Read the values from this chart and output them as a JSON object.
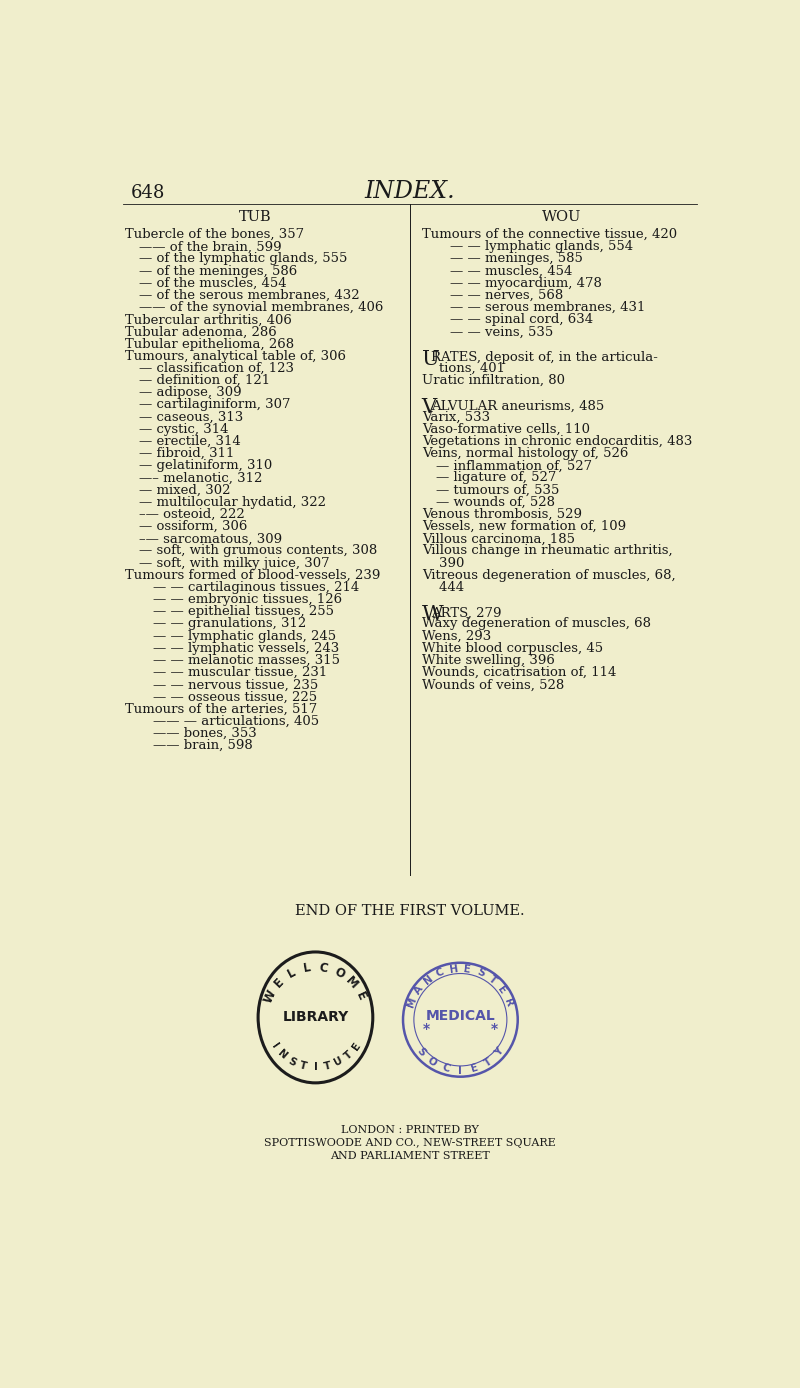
{
  "bg_color": "#f0eecc",
  "page_number": "648",
  "page_title": "INDEX.",
  "col1_header": "TUB",
  "col2_header": "WOU",
  "col1_lines": [
    [
      "Tubercle of the bones, 357",
      0
    ],
    [
      "—— of the brain, 599",
      1
    ],
    [
      "— of the lymphatic glands, 555",
      1
    ],
    [
      "— of the meninges, 586",
      1
    ],
    [
      "— of the muscles, 454",
      1
    ],
    [
      "— of the serous membranes, 432",
      1
    ],
    [
      "—— of the synovial membranes, 406",
      1
    ],
    [
      "Tubercular arthritis, 406",
      0
    ],
    [
      "Tubular adenoma, 286",
      0
    ],
    [
      "Tubular epithelioma, 268",
      0
    ],
    [
      "Tumours, analytical table of, 306",
      0
    ],
    [
      "— classification of, 123",
      1
    ],
    [
      "— definition of, 121",
      1
    ],
    [
      "— adipose, 309",
      1
    ],
    [
      "— cartilaginiform, 307",
      1
    ],
    [
      "— caseous, 313",
      1
    ],
    [
      "— cystic, 314",
      1
    ],
    [
      "— erectile, 314",
      1
    ],
    [
      "— fibroid, 311",
      1
    ],
    [
      "— gelatiniform, 310",
      1
    ],
    [
      "—– melanotic, 312",
      1
    ],
    [
      "— mixed, 302",
      1
    ],
    [
      "— multilocular hydatid, 322",
      1
    ],
    [
      "–— osteoid, 222",
      1
    ],
    [
      "— ossiform, 306",
      1
    ],
    [
      "–— sarcomatous, 309",
      1
    ],
    [
      "— soft, with grumous contents, 308",
      1
    ],
    [
      "— soft, with milky juice, 307",
      1
    ],
    [
      "Tumours formed of blood-vessels, 239",
      0
    ],
    [
      "— — cartilaginous tissues, 214",
      2
    ],
    [
      "— — embryonic tissues, 126",
      2
    ],
    [
      "— — epithelial tissues, 255",
      2
    ],
    [
      "— — granulations, 312",
      2
    ],
    [
      "— — lymphatic glands, 245",
      2
    ],
    [
      "— — lymphatic vessels, 243",
      2
    ],
    [
      "— — melanotic masses, 315",
      2
    ],
    [
      "— — muscular tissue, 231",
      2
    ],
    [
      "— — nervous tissue, 235",
      2
    ],
    [
      "— — osseous tissue, 225",
      2
    ],
    [
      "Tumours of the arteries, 517",
      0
    ],
    [
      "—— — articulations, 405",
      2
    ],
    [
      "—— bones, 353",
      2
    ],
    [
      "—— brain, 598",
      2
    ]
  ],
  "col2_lines": [
    [
      "Tumours of the connective tissue, 420",
      0
    ],
    [
      "— — lymphatic glands, 554",
      2
    ],
    [
      "— — meninges, 585",
      2
    ],
    [
      "— — muscles, 454",
      2
    ],
    [
      "— — myocardium, 478",
      2
    ],
    [
      "— — nerves, 568",
      2
    ],
    [
      "— — serous membranes, 431",
      2
    ],
    [
      "— — spinal cord, 634",
      2
    ],
    [
      "— — veins, 535",
      2
    ],
    [
      "",
      0
    ],
    [
      "URATES, deposit of, in the articula-",
      0
    ],
    [
      "    tions, 401",
      0
    ],
    [
      "Uratic infiltration, 80",
      0
    ],
    [
      "",
      0
    ],
    [
      "VALVULAR aneurisms, 485",
      0
    ],
    [
      "Varix, 533",
      0
    ],
    [
      "Vaso-formative cells, 110",
      0
    ],
    [
      "Vegetations in chronic endocarditis, 483",
      0
    ],
    [
      "Veins, normal histology of, 526",
      0
    ],
    [
      "— inflammation of, 527",
      1
    ],
    [
      "— ligature of, 527",
      1
    ],
    [
      "— tumours of, 535",
      1
    ],
    [
      "— wounds of, 528",
      1
    ],
    [
      "Venous thrombosis, 529",
      0
    ],
    [
      "Vessels, new formation of, 109",
      0
    ],
    [
      "Villous carcinoma, 185",
      0
    ],
    [
      "Villous change in rheumatic arthritis,",
      0
    ],
    [
      "    390",
      0
    ],
    [
      "Vitreous degeneration of muscles, 68,",
      0
    ],
    [
      "    444",
      0
    ],
    [
      "",
      0
    ],
    [
      "WARTS, 279",
      0
    ],
    [
      "Waxy degeneration of muscles, 68",
      0
    ],
    [
      "Wens, 293",
      0
    ],
    [
      "White blood corpuscles, 45",
      0
    ],
    [
      "White swelling, 396",
      0
    ],
    [
      "Wounds, cicatrisation of, 114",
      0
    ],
    [
      "Wounds of veins, 528",
      0
    ]
  ],
  "large_initials": [
    "URATES",
    "VALVULAR",
    "WARTS"
  ],
  "end_text": "END OF THE FIRST VOLUME.",
  "london_line1": "LONDON : PRINTED BY",
  "london_line2": "SPOTTISWOODE AND CO., NEW-STREET SQUARE",
  "london_line3": "AND PARLIAMENT STREET",
  "font_size": 9.5,
  "text_color": "#1a1a1a"
}
